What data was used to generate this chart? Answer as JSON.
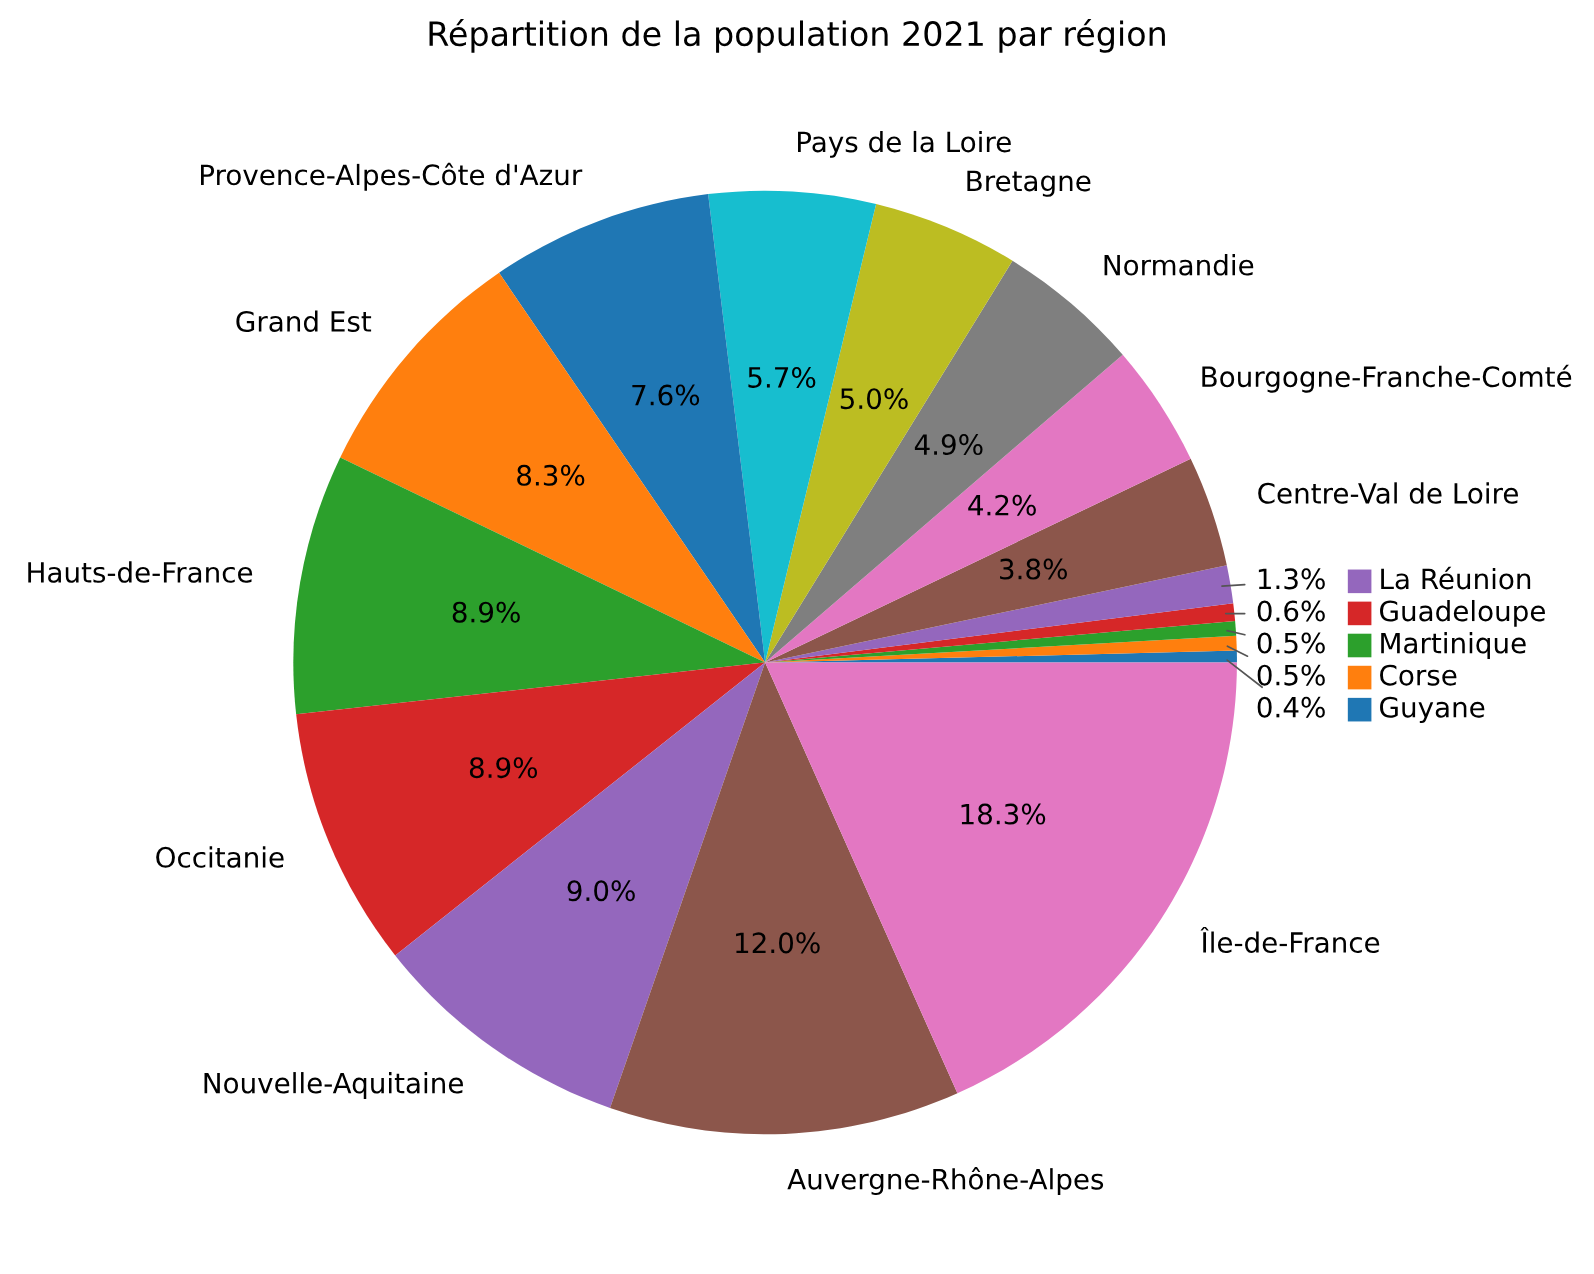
{
  "chart_data": {
    "type": "pie",
    "title": "Répartition de la population 2021 par région",
    "categories": [
      "Guyane",
      "Corse",
      "Martinique",
      "Guadeloupe",
      "La Réunion",
      "Centre-Val de Loire",
      "Bourgogne-Franche-Comté",
      "Normandie",
      "Bretagne",
      "Pays de la Loire",
      "Provence-Alpes-Côte d'Azur",
      "Grand Est",
      "Hauts-de-France",
      "Occitanie",
      "Nouvelle-Aquitaine",
      "Auvergne-Rhône-Alpes",
      "Île-de-France"
    ],
    "values": [
      0.4,
      0.5,
      0.5,
      0.6,
      1.3,
      3.8,
      4.2,
      4.9,
      5.0,
      5.7,
      7.6,
      8.3,
      8.9,
      8.9,
      9.0,
      12.0,
      18.3
    ],
    "colors": [
      "#1f77b4",
      "#ff7f0e",
      "#2ca02c",
      "#d62728",
      "#9467bd",
      "#8c564b",
      "#e377c2",
      "#7f7f7f",
      "#bcbd22",
      "#17becf",
      "#1f77b4",
      "#ff7f0e",
      "#2ca02c",
      "#d62728",
      "#9467bd",
      "#8c564b",
      "#e377c2"
    ],
    "legend": "right",
    "value_labels": [
      "0.4%",
      "0.5%",
      "0.5%",
      "0.6%",
      "1.3%",
      "3.8%",
      "4.2%",
      "4.9%",
      "5.0%",
      "5.7%",
      "7.6%",
      "8.3%",
      "8.9%",
      "8.9%",
      "9.0%",
      "12.0%",
      "18.3%"
    ]
  }
}
